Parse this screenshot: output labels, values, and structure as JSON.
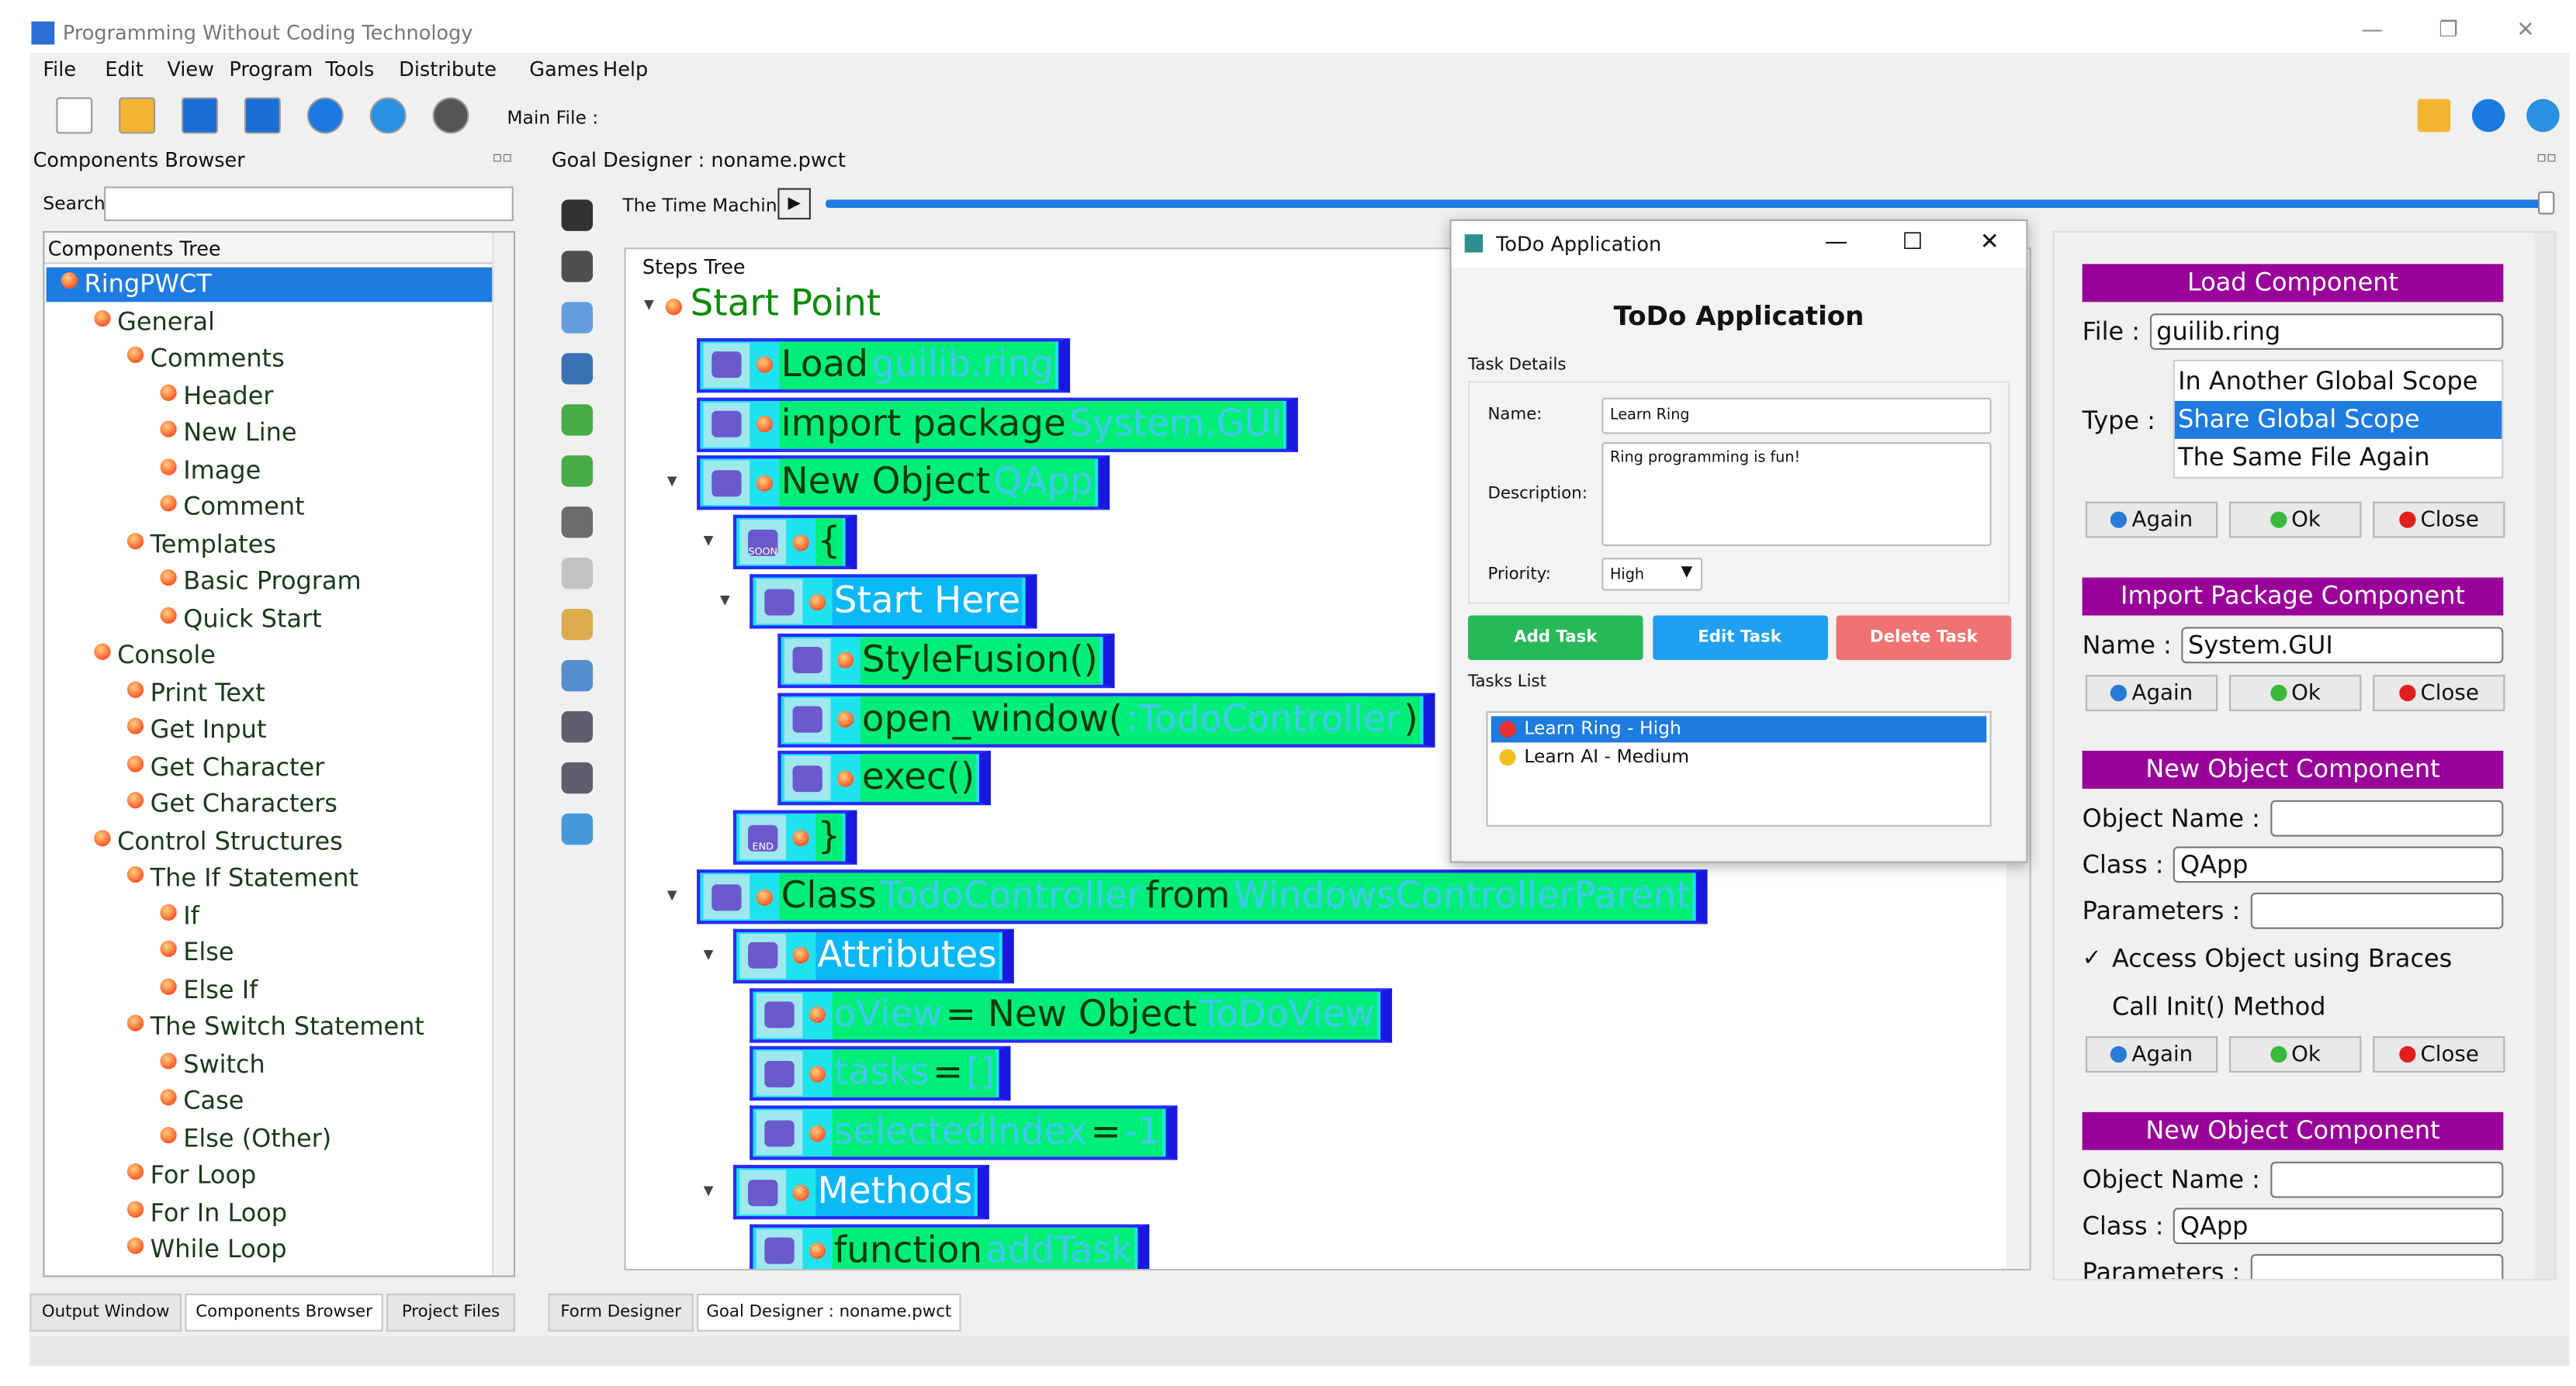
{
  "window": {
    "title": "Programming Without Coding Technology"
  },
  "menu": [
    "File",
    "Edit",
    "View",
    "Program",
    "Tools",
    "Distribute",
    "Games",
    "Help"
  ],
  "toolbar": {
    "main_file_label": "Main File :"
  },
  "components_browser": {
    "title": "Components Browser",
    "search_label": "Search",
    "tree_header": "Components Tree",
    "tree": {
      "label": "RingPWCT",
      "selected": true,
      "children": [
        {
          "label": "General",
          "children": [
            {
              "label": "Comments",
              "children": [
                {
                  "label": "Header"
                },
                {
                  "label": "New Line"
                },
                {
                  "label": "Image"
                },
                {
                  "label": "Comment"
                }
              ]
            },
            {
              "label": "Templates",
              "children": [
                {
                  "label": "Basic Program"
                },
                {
                  "label": "Quick Start"
                }
              ]
            }
          ]
        },
        {
          "label": "Console",
          "children": [
            {
              "label": "Print Text"
            },
            {
              "label": "Get Input"
            },
            {
              "label": "Get Character"
            },
            {
              "label": "Get Characters"
            }
          ]
        },
        {
          "label": "Control Structures",
          "children": [
            {
              "label": "The If Statement",
              "children": [
                {
                  "label": "If"
                },
                {
                  "label": "Else"
                },
                {
                  "label": "Else If"
                }
              ]
            },
            {
              "label": "The Switch Statement",
              "children": [
                {
                  "label": "Switch"
                },
                {
                  "label": "Case"
                },
                {
                  "label": "Else (Other)"
                }
              ]
            },
            {
              "label": "For Loop"
            },
            {
              "label": "For In Loop"
            },
            {
              "label": "While Loop"
            }
          ]
        }
      ]
    }
  },
  "goal_designer": {
    "title": "Goal Designer : noname.pwct",
    "time_machine_label": "The Time Machine",
    "steps_label": "Steps Tree",
    "root": {
      "parts": [
        {
          "text": "Start Point",
          "kind": "keyword"
        }
      ],
      "children": [
        {
          "parts": [
            {
              "text": "Load",
              "kind": "keyword"
            },
            {
              "text": "guilib.ring",
              "kind": "value"
            }
          ]
        },
        {
          "parts": [
            {
              "text": "import package",
              "kind": "keyword"
            },
            {
              "text": "System.GUI",
              "kind": "value"
            }
          ]
        },
        {
          "parts": [
            {
              "text": "New Object",
              "kind": "keyword"
            },
            {
              "text": "QApp",
              "kind": "value"
            }
          ],
          "children": [
            {
              "icon_text": "SOON",
              "parts": [
                {
                  "text": "{",
                  "kind": "keyword"
                }
              ],
              "children": [
                {
                  "parts": [
                    {
                      "text": "Start Here",
                      "kind": "section"
                    }
                  ],
                  "children": [
                    {
                      "parts": [
                        {
                          "text": "StyleFusion()",
                          "kind": "keyword"
                        }
                      ]
                    },
                    {
                      "parts": [
                        {
                          "text": "open_window(",
                          "kind": "keyword"
                        },
                        {
                          "text": ":TodoController",
                          "kind": "value"
                        },
                        {
                          "text": ")",
                          "kind": "keyword"
                        }
                      ]
                    },
                    {
                      "parts": [
                        {
                          "text": "exec()",
                          "kind": "keyword"
                        }
                      ]
                    }
                  ]
                }
              ]
            },
            {
              "icon_text": "END",
              "parts": [
                {
                  "text": "}",
                  "kind": "keyword"
                }
              ]
            }
          ]
        },
        {
          "parts": [
            {
              "text": "Class",
              "kind": "keyword"
            },
            {
              "text": "TodoController",
              "kind": "value"
            },
            {
              "text": "from",
              "kind": "keyword"
            },
            {
              "text": "WindowsControllerParent",
              "kind": "value"
            }
          ],
          "children": [
            {
              "parts": [
                {
                  "text": "Attributes",
                  "kind": "section"
                }
              ],
              "children": [
                {
                  "parts": [
                    {
                      "text": "oView",
                      "kind": "value"
                    },
                    {
                      "text": "= New Object",
                      "kind": "keyword"
                    },
                    {
                      "text": "ToDoView",
                      "kind": "value"
                    }
                  ]
                },
                {
                  "parts": [
                    {
                      "text": "tasks",
                      "kind": "value"
                    },
                    {
                      "text": "=",
                      "kind": "keyword"
                    },
                    {
                      "text": "[]",
                      "kind": "value"
                    }
                  ]
                },
                {
                  "parts": [
                    {
                      "text": "selectedIndex",
                      "kind": "value"
                    },
                    {
                      "text": "=",
                      "kind": "keyword"
                    },
                    {
                      "text": "-1",
                      "kind": "value"
                    }
                  ]
                }
              ]
            },
            {
              "parts": [
                {
                  "text": "Methods",
                  "kind": "section"
                }
              ],
              "children": [
                {
                  "parts": [
                    {
                      "text": "function",
                      "kind": "keyword"
                    },
                    {
                      "text": "addTask",
                      "kind": "value"
                    }
                  ]
                }
              ]
            }
          ]
        }
      ]
    }
  },
  "dialog": {
    "title": "ToDo Application",
    "heading": "ToDo Application",
    "group_label": "Task Details",
    "fields": [
      {
        "label": "Name:",
        "value": "Learn Ring"
      },
      {
        "label": "Description:",
        "value": "Ring programming is fun!"
      },
      {
        "label": "Priority:",
        "value": "High"
      }
    ],
    "buttons": [
      "Add Task",
      "Edit Task",
      "Delete Task"
    ],
    "list_label": "Tasks List",
    "tasks": [
      "Learn Ring - High",
      "Learn AI - Medium"
    ],
    "selected_task": 0
  },
  "properties": [
    {
      "title": "Load Component",
      "fields": [
        {
          "label": "File :",
          "value": "guilib.ring"
        }
      ],
      "type_label": "Type :",
      "options": [
        "In Another Global Scope",
        "Share Global Scope",
        "The Same File Again"
      ],
      "selected_option": 1,
      "buttons": [
        "Again",
        "Ok",
        "Close"
      ]
    },
    {
      "title": "Import Package Component",
      "fields": [
        {
          "label": "Name :",
          "value": "System.GUI"
        }
      ],
      "buttons": [
        "Again",
        "Ok",
        "Close"
      ]
    },
    {
      "title": "New Object Component",
      "fields": [
        {
          "label": "Object Name :"
        },
        {
          "label": "Class :",
          "value": "QApp"
        },
        {
          "label": "Parameters :"
        }
      ],
      "checkboxes": [
        {
          "label": "Access Object using Braces",
          "checked": true
        },
        {
          "label": "Call Init() Method",
          "checked": false
        }
      ],
      "buttons": [
        "Again",
        "Ok",
        "Close"
      ]
    },
    {
      "title": "New Object Component",
      "fields": [
        {
          "label": "Object Name :"
        },
        {
          "label": "Class :",
          "value": "QApp"
        },
        {
          "label": "Parameters :"
        }
      ]
    }
  ],
  "bottom_tabs": {
    "left": [
      "Output Window",
      "Components Browser",
      "Project Files"
    ],
    "left_active": 1,
    "right": [
      "Form Designer",
      "Goal Designer : noname.pwct"
    ],
    "right_active": 1
  }
}
